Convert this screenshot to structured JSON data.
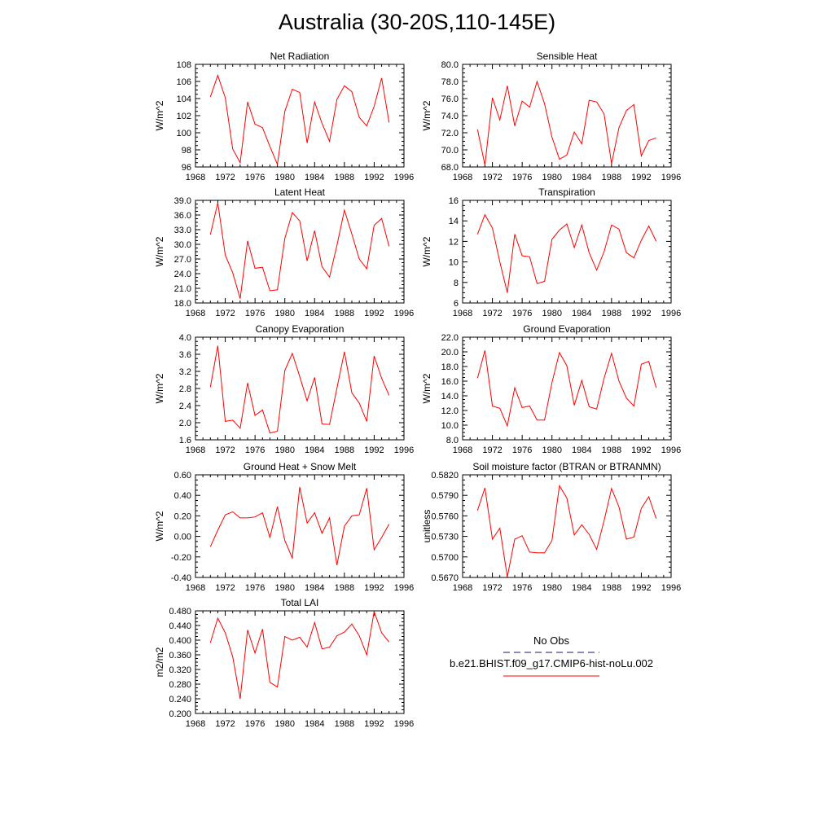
{
  "title": "Australia (30-20S,110-145E)",
  "colors": {
    "model": "#ff0000",
    "obs": "#1a1a66",
    "axis": "#000000"
  },
  "legend": {
    "obs_label": "No Obs",
    "model_label": "b.e21.BHIST.f09_g17.CMIP6-hist-noLu.002"
  },
  "chart_data": [
    {
      "type": "line",
      "title": "Net Radiation",
      "ylabel": "W/m^2",
      "xlim": [
        1968,
        1996
      ],
      "ylim": [
        96,
        108
      ],
      "xticks": [
        "1968",
        "1972",
        "1976",
        "1980",
        "1984",
        "1988",
        "1992",
        "1996"
      ],
      "yticks": [
        "96",
        "98",
        "100",
        "102",
        "104",
        "106",
        "108"
      ],
      "x": [
        1970,
        1971,
        1972,
        1973,
        1974,
        1975,
        1976,
        1977,
        1978,
        1979,
        1980,
        1981,
        1982,
        1983,
        1984,
        1985,
        1986,
        1987,
        1988,
        1989,
        1990,
        1991,
        1992,
        1993,
        1994
      ],
      "series": [
        {
          "values": [
            104.2,
            106.7,
            104.1,
            98.1,
            96.5,
            103.6,
            101.0,
            100.6,
            98.4,
            96.3,
            102.5,
            105.1,
            104.7,
            98.8,
            103.6,
            101.1,
            99.0,
            103.9,
            105.5,
            104.8,
            101.8,
            100.8,
            103.1,
            106.4,
            101.2
          ]
        }
      ]
    },
    {
      "type": "line",
      "title": "Sensible Heat",
      "ylabel": "W/m^2",
      "xlim": [
        1968,
        1996
      ],
      "ylim": [
        68,
        80
      ],
      "xticks": [
        "1968",
        "1972",
        "1976",
        "1980",
        "1984",
        "1988",
        "1992",
        "1996"
      ],
      "yticks": [
        "68.0",
        "70.0",
        "72.0",
        "74.0",
        "76.0",
        "78.0",
        "80.0"
      ],
      "x": [
        1970,
        1971,
        1972,
        1973,
        1974,
        1975,
        1976,
        1977,
        1978,
        1979,
        1980,
        1981,
        1982,
        1983,
        1984,
        1985,
        1986,
        1987,
        1988,
        1989,
        1990,
        1991,
        1992,
        1993,
        1994
      ],
      "series": [
        {
          "values": [
            72.4,
            68.2,
            76.1,
            73.5,
            77.5,
            72.8,
            75.7,
            75.0,
            78.0,
            75.4,
            71.5,
            68.9,
            69.4,
            72.1,
            70.7,
            75.8,
            75.6,
            74.2,
            68.4,
            72.6,
            74.6,
            75.3,
            69.3,
            71.1,
            71.4
          ]
        }
      ]
    },
    {
      "type": "line",
      "title": "Latent Heat",
      "ylabel": "W/m^2",
      "xlim": [
        1968,
        1996
      ],
      "ylim": [
        18,
        39
      ],
      "xticks": [
        "1968",
        "1972",
        "1976",
        "1980",
        "1984",
        "1988",
        "1992",
        "1996"
      ],
      "yticks": [
        "18.0",
        "21.0",
        "24.0",
        "27.0",
        "30.0",
        "33.0",
        "36.0",
        "39.0"
      ],
      "x": [
        1970,
        1971,
        1972,
        1973,
        1974,
        1975,
        1976,
        1977,
        1978,
        1979,
        1980,
        1981,
        1982,
        1983,
        1984,
        1985,
        1986,
        1987,
        1988,
        1989,
        1990,
        1991,
        1992,
        1993,
        1994
      ],
      "series": [
        {
          "values": [
            32.0,
            38.5,
            27.8,
            24.2,
            18.9,
            30.7,
            25.1,
            25.3,
            20.5,
            20.7,
            31.2,
            36.5,
            34.8,
            26.6,
            32.8,
            25.4,
            23.3,
            29.8,
            37.0,
            32.1,
            27.0,
            25.0,
            33.9,
            35.3,
            29.6
          ]
        }
      ]
    },
    {
      "type": "line",
      "title": "Transpiration",
      "ylabel": "W/m^2",
      "xlim": [
        1968,
        1996
      ],
      "ylim": [
        6,
        16
      ],
      "xticks": [
        "1968",
        "1972",
        "1976",
        "1980",
        "1984",
        "1988",
        "1992",
        "1996"
      ],
      "yticks": [
        "6",
        "8",
        "10",
        "12",
        "14",
        "16"
      ],
      "x": [
        1970,
        1971,
        1972,
        1973,
        1974,
        1975,
        1976,
        1977,
        1978,
        1979,
        1980,
        1981,
        1982,
        1983,
        1984,
        1985,
        1986,
        1987,
        1988,
        1989,
        1990,
        1991,
        1992,
        1993,
        1994
      ],
      "series": [
        {
          "values": [
            12.7,
            14.6,
            13.3,
            10.0,
            7.0,
            12.7,
            10.6,
            10.5,
            7.9,
            8.1,
            12.2,
            13.1,
            13.7,
            11.4,
            13.6,
            10.9,
            9.2,
            11.0,
            13.6,
            13.2,
            10.9,
            10.4,
            12.1,
            13.5,
            12.0
          ]
        }
      ]
    },
    {
      "type": "line",
      "title": "Canopy Evaporation",
      "ylabel": "W/m^2",
      "xlim": [
        1968,
        1996
      ],
      "ylim": [
        1.6,
        4.0
      ],
      "xticks": [
        "1968",
        "1972",
        "1976",
        "1980",
        "1984",
        "1988",
        "1992",
        "1996"
      ],
      "yticks": [
        "1.6",
        "2.0",
        "2.4",
        "2.8",
        "3.2",
        "3.6",
        "4.0"
      ],
      "x": [
        1970,
        1971,
        1972,
        1973,
        1974,
        1975,
        1976,
        1977,
        1978,
        1979,
        1980,
        1981,
        1982,
        1983,
        1984,
        1985,
        1986,
        1987,
        1988,
        1989,
        1990,
        1991,
        1992,
        1993,
        1994
      ],
      "series": [
        {
          "values": [
            2.83,
            3.8,
            2.03,
            2.06,
            1.87,
            2.93,
            2.17,
            2.3,
            1.76,
            1.8,
            3.22,
            3.62,
            3.08,
            2.51,
            3.06,
            1.97,
            1.96,
            2.81,
            3.66,
            2.7,
            2.46,
            2.03,
            3.56,
            3.04,
            2.64
          ]
        }
      ]
    },
    {
      "type": "line",
      "title": "Ground Evaporation",
      "ylabel": "W/m^2",
      "xlim": [
        1968,
        1996
      ],
      "ylim": [
        8,
        22
      ],
      "xticks": [
        "1968",
        "1972",
        "1976",
        "1980",
        "1984",
        "1988",
        "1992",
        "1996"
      ],
      "yticks": [
        "8.0",
        "10.0",
        "12.0",
        "14.0",
        "16.0",
        "18.0",
        "20.0",
        "22.0"
      ],
      "x": [
        1970,
        1971,
        1972,
        1973,
        1974,
        1975,
        1976,
        1977,
        1978,
        1979,
        1980,
        1981,
        1982,
        1983,
        1984,
        1985,
        1986,
        1987,
        1988,
        1989,
        1990,
        1991,
        1992,
        1993,
        1994
      ],
      "series": [
        {
          "values": [
            16.4,
            20.2,
            12.6,
            12.3,
            9.9,
            15.1,
            12.4,
            12.6,
            10.7,
            10.7,
            15.8,
            19.9,
            18.1,
            12.7,
            16.1,
            12.5,
            12.2,
            16.4,
            19.8,
            16.0,
            13.7,
            12.6,
            18.3,
            18.7,
            15.1
          ]
        }
      ]
    },
    {
      "type": "line",
      "title": "Ground Heat + Snow Melt",
      "ylabel": "W/m^2",
      "xlim": [
        1968,
        1996
      ],
      "ylim": [
        -0.4,
        0.6
      ],
      "xticks": [
        "1968",
        "1972",
        "1976",
        "1980",
        "1984",
        "1988",
        "1992",
        "1996"
      ],
      "yticks": [
        "-0.40",
        "-0.20",
        "0.00",
        "0.20",
        "0.40",
        "0.60"
      ],
      "x": [
        1970,
        1971,
        1972,
        1973,
        1974,
        1975,
        1976,
        1977,
        1978,
        1979,
        1980,
        1981,
        1982,
        1983,
        1984,
        1985,
        1986,
        1987,
        1988,
        1989,
        1990,
        1991,
        1992,
        1993,
        1994
      ],
      "series": [
        {
          "values": [
            -0.1,
            0.06,
            0.21,
            0.24,
            0.18,
            0.18,
            0.19,
            0.23,
            -0.01,
            0.29,
            -0.04,
            -0.21,
            0.48,
            0.13,
            0.23,
            0.03,
            0.18,
            -0.28,
            0.1,
            0.2,
            0.21,
            0.47,
            -0.13,
            -0.01,
            0.12
          ]
        }
      ]
    },
    {
      "type": "line",
      "title": "Soil moisture factor (BTRAN or BTRANMN)",
      "ylabel": "unitless",
      "xlim": [
        1968,
        1996
      ],
      "ylim": [
        0.567,
        0.582
      ],
      "xticks": [
        "1968",
        "1972",
        "1976",
        "1980",
        "1984",
        "1988",
        "1992",
        "1996"
      ],
      "yticks": [
        "0.5670",
        "0.5700",
        "0.5730",
        "0.5760",
        "0.5790",
        "0.5820"
      ],
      "x": [
        1970,
        1971,
        1972,
        1973,
        1974,
        1975,
        1976,
        1977,
        1978,
        1979,
        1980,
        1981,
        1982,
        1983,
        1984,
        1985,
        1986,
        1987,
        1988,
        1989,
        1990,
        1991,
        1992,
        1993,
        1994
      ],
      "series": [
        {
          "values": [
            0.5768,
            0.5801,
            0.5726,
            0.5742,
            0.5671,
            0.5726,
            0.5731,
            0.5707,
            0.5706,
            0.5706,
            0.5724,
            0.5804,
            0.5786,
            0.5732,
            0.5747,
            0.5733,
            0.5711,
            0.5753,
            0.58,
            0.5773,
            0.5726,
            0.5729,
            0.5771,
            0.5788,
            0.5756
          ]
        }
      ]
    },
    {
      "type": "line",
      "title": "Total LAI",
      "ylabel": "m2/m2",
      "xlim": [
        1968,
        1996
      ],
      "ylim": [
        0.2,
        0.48
      ],
      "xticks": [
        "1968",
        "1972",
        "1976",
        "1980",
        "1984",
        "1988",
        "1992",
        "1996"
      ],
      "yticks": [
        "0.200",
        "0.240",
        "0.280",
        "0.320",
        "0.360",
        "0.400",
        "0.440",
        "0.480"
      ],
      "x": [
        1970,
        1971,
        1972,
        1973,
        1974,
        1975,
        1976,
        1977,
        1978,
        1979,
        1980,
        1981,
        1982,
        1983,
        1984,
        1985,
        1986,
        1987,
        1988,
        1989,
        1990,
        1991,
        1992,
        1993,
        1994
      ],
      "series": [
        {
          "values": [
            0.393,
            0.46,
            0.42,
            0.355,
            0.24,
            0.428,
            0.365,
            0.43,
            0.285,
            0.272,
            0.41,
            0.4,
            0.408,
            0.381,
            0.448,
            0.376,
            0.381,
            0.412,
            0.422,
            0.444,
            0.412,
            0.36,
            0.478,
            0.42,
            0.395
          ]
        }
      ]
    }
  ]
}
